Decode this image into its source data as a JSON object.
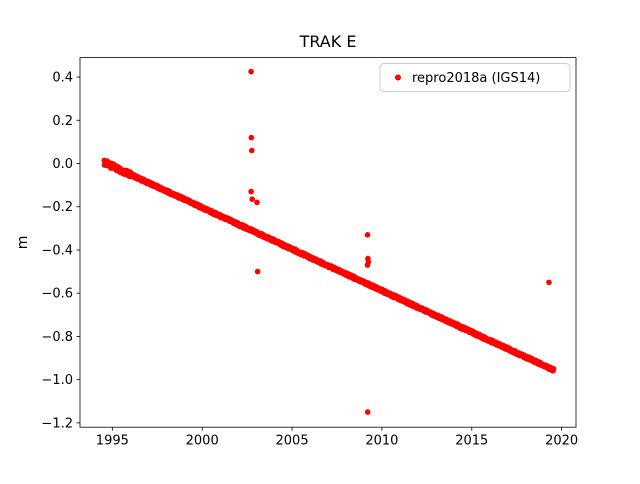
{
  "chart_data": {
    "type": "scatter",
    "title": "TRAK E",
    "xlabel": "",
    "ylabel": "m",
    "xlim": [
      1993.2,
      2020.8
    ],
    "ylim": [
      -1.22,
      0.49
    ],
    "xticks": [
      1995,
      2000,
      2005,
      2010,
      2015,
      2020
    ],
    "yticks": [
      0.4,
      0.2,
      0.0,
      -0.2,
      -0.4,
      -0.6,
      -0.8,
      -1.0,
      -1.2
    ],
    "grid": false,
    "legend": {
      "position": "upper right",
      "entries": [
        {
          "label": "repro2018a (IGS14)",
          "marker": "dot",
          "color": "#ff0000"
        }
      ]
    },
    "series": [
      {
        "name": "repro2018a (IGS14)",
        "color": "#ff0000",
        "marker_radius_px": 2.8,
        "trend": {
          "description": "dense daily solutions forming a near-linear subsidence band",
          "x_start": 1994.55,
          "x_end": 2019.55,
          "y_start": 0.005,
          "y_end": -0.955,
          "slope_m_per_yr": -0.0384,
          "n_points": 1800,
          "jitter_m": 0.012
        },
        "outliers": [
          [
            2002.72,
            0.425
          ],
          [
            2002.73,
            0.12
          ],
          [
            2002.76,
            0.06
          ],
          [
            2002.72,
            -0.13
          ],
          [
            2002.78,
            -0.165
          ],
          [
            2003.05,
            -0.18
          ],
          [
            2003.08,
            -0.5
          ],
          [
            2009.2,
            -0.33
          ],
          [
            2009.22,
            -0.44
          ],
          [
            2009.25,
            -0.455
          ],
          [
            2009.2,
            -0.47
          ],
          [
            2009.21,
            -1.15
          ],
          [
            2019.3,
            -0.55
          ]
        ]
      }
    ]
  }
}
